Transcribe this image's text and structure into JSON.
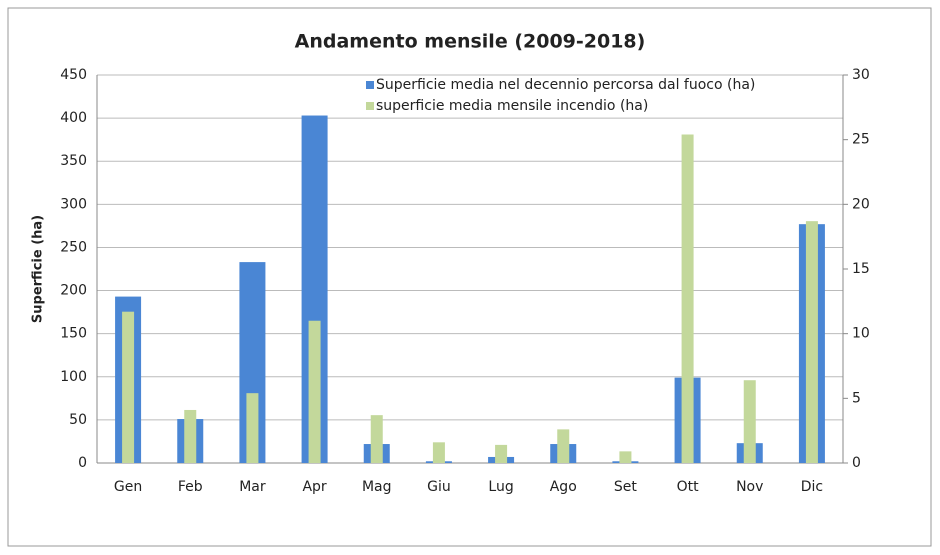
{
  "chart_data": {
    "type": "bar",
    "title": "Andamento mensile (2009-2018)",
    "ylabel": "Superficie (ha)",
    "categories": [
      "Gen",
      "Feb",
      "Mar",
      "Apr",
      "Mag",
      "Giu",
      "Lug",
      "Ago",
      "Set",
      "Ott",
      "Nov",
      "Dic"
    ],
    "series": [
      {
        "name": "Superficie media nel decennio percorsa dal fuoco (ha)",
        "color": "#4a86d4",
        "axis": "y",
        "values": [
          193,
          51,
          233,
          403,
          22,
          2,
          7,
          22,
          2,
          99,
          23,
          277
        ]
      },
      {
        "name": "superficie media mensile incendio (ha)",
        "color": "#c3d89b",
        "axis": "y2",
        "values": [
          11.7,
          4.1,
          5.4,
          11.0,
          3.7,
          1.6,
          1.4,
          2.6,
          0.9,
          25.4,
          6.4,
          18.7
        ]
      }
    ],
    "ylim": [
      0,
      450
    ],
    "yticks": [
      0,
      50,
      100,
      150,
      200,
      250,
      300,
      350,
      400,
      450
    ],
    "y2lim": [
      0,
      30
    ],
    "y2ticks": [
      0,
      5,
      10,
      15,
      20,
      25,
      30
    ],
    "grid": true
  }
}
